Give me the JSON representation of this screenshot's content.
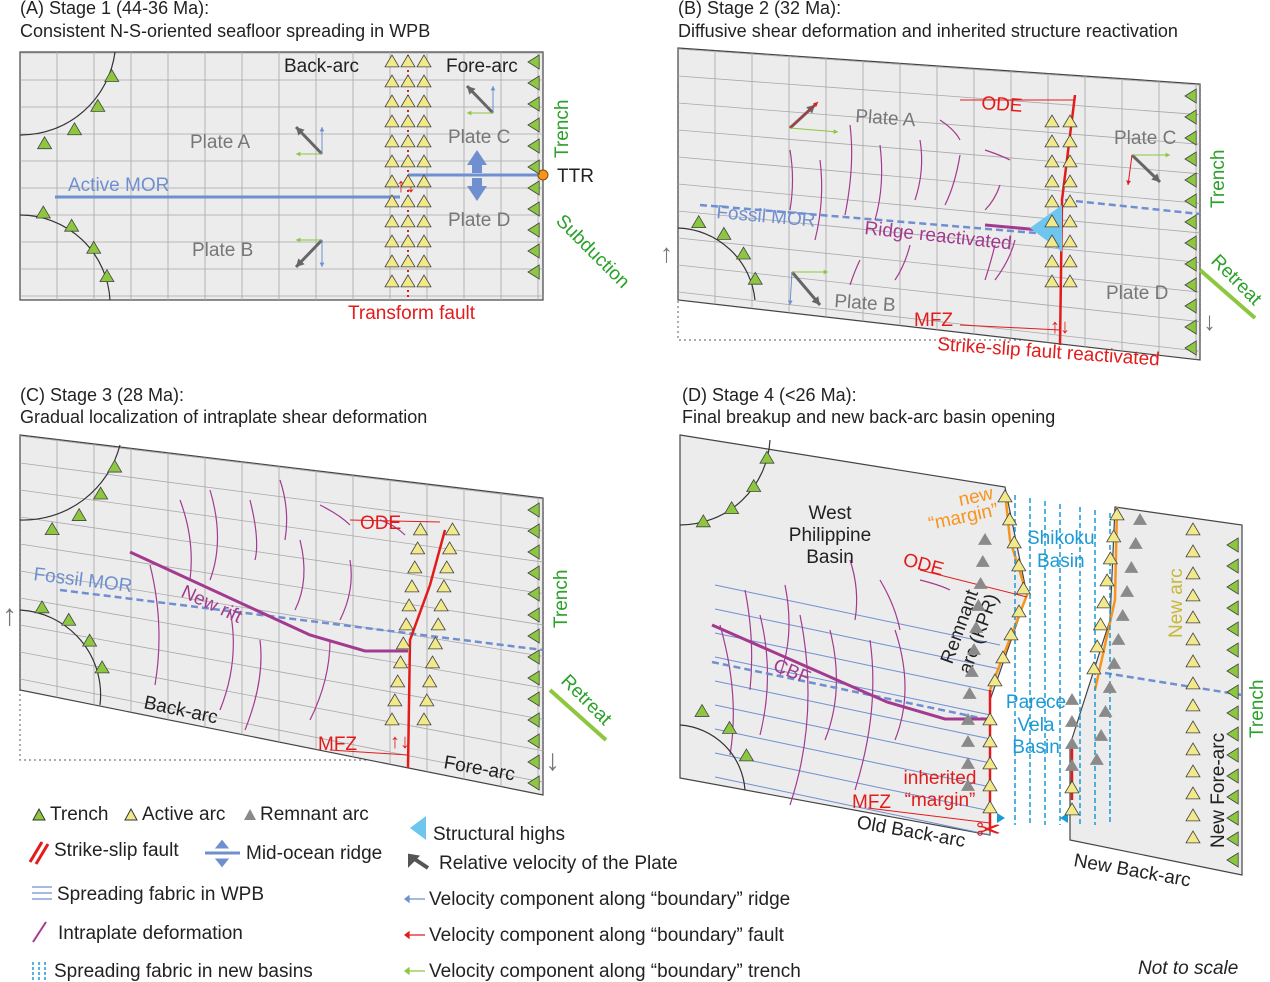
{
  "colors": {
    "trench": "#8dc63f",
    "active_arc": "#f2e98a",
    "remnant_arc": "#8a8a8a",
    "fault": "#e31b1b",
    "mor": "#6f8fd0",
    "deformation": "#a23b8f",
    "new_margin": "#f7941d",
    "new_basin": "#1b9ad6",
    "trench_text": "#2aa12a",
    "structural_high": "#6ec6ee"
  },
  "panels": {
    "a": {
      "title": "(A) Stage 1 (44-36 Ma):",
      "subtitle": "Consistent N-S-oriented seafloor spreading in WPB",
      "labels": {
        "back_arc": "Back-arc",
        "fore_arc": "Fore-arc",
        "plate_a": "Plate A",
        "plate_b": "Plate B",
        "plate_c": "Plate C",
        "plate_d": "Plate D",
        "active_mor": "Active MOR",
        "trench": "Trench",
        "ttr": "TTR",
        "subduction": "Subduction",
        "transform_fault": "Transform fault"
      }
    },
    "b": {
      "title": "(B) Stage 2 (32 Ma):",
      "subtitle": "Diffusive shear deformation and inherited structure reactivation",
      "labels": {
        "plate_a": "Plate A",
        "ode": "ODE",
        "plate_c": "Plate C",
        "trench": "Trench",
        "fossil_mor": "Fossil MOR",
        "ridge_reactivated": "Ridge reactivated",
        "plate_d": "Plate D",
        "plate_b": "Plate B",
        "mfz": "MFZ",
        "retreat": "Retreat",
        "strike_slip": "Strike-slip fault reactivated"
      }
    },
    "c": {
      "title": "(C) Stage 3 (28 Ma):",
      "subtitle": "Gradual localization of intraplate shear deformation",
      "labels": {
        "ode": "ODE",
        "fossil_mor": "Fossil MOR",
        "new_rift": "New rift",
        "trench": "Trench",
        "back_arc": "Back-arc",
        "retreat": "Retreat",
        "mfz": "MFZ",
        "fore_arc": "Fore-arc"
      }
    },
    "d": {
      "title": "(D) Stage 4 (<26 Ma):",
      "subtitle": "Final breakup and new back-arc basin opening",
      "labels": {
        "wpb_1": "West",
        "wpb_2": "Philippine",
        "wpb_3": "Basin",
        "new_margin_1": "new",
        "new_margin_2": "“margin”",
        "ode": "ODE",
        "shikoku_1": "Shikoku",
        "shikoku_2": "Basin",
        "remnant_1": "Remnant",
        "remnant_2": "arc (KPR)",
        "new_arc": "New arc",
        "cbf": "CBF",
        "parece_1": "Parece",
        "parece_2": "Vela",
        "parece_3": "Basin",
        "inherited_1": "inherited",
        "inherited_2": "“margin”",
        "mfz": "MFZ",
        "old_back_arc": "Old Back-arc",
        "new_back_arc": "New Back-arc",
        "new_fore_arc": "New Fore-arc",
        "trench": "Trench"
      }
    }
  },
  "legend": {
    "trench": "Trench",
    "active_arc": "Active arc",
    "remnant_arc": "Remnant arc",
    "strike_slip": "Strike-slip fault",
    "mor": "Mid-ocean ridge",
    "spreading_wpb": "Spreading fabric in WPB",
    "intraplate": "Intraplate deformation",
    "spreading_new": "Spreading fabric in new basins",
    "structural_highs": "Structural highs",
    "relative_velocity": "Relative velocity of the Plate",
    "vel_ridge": "Velocity component along “boundary” ridge",
    "vel_fault": "Velocity component along “boundary” fault",
    "vel_trench": "Velocity component along “boundary” trench"
  },
  "note": "Not to scale"
}
